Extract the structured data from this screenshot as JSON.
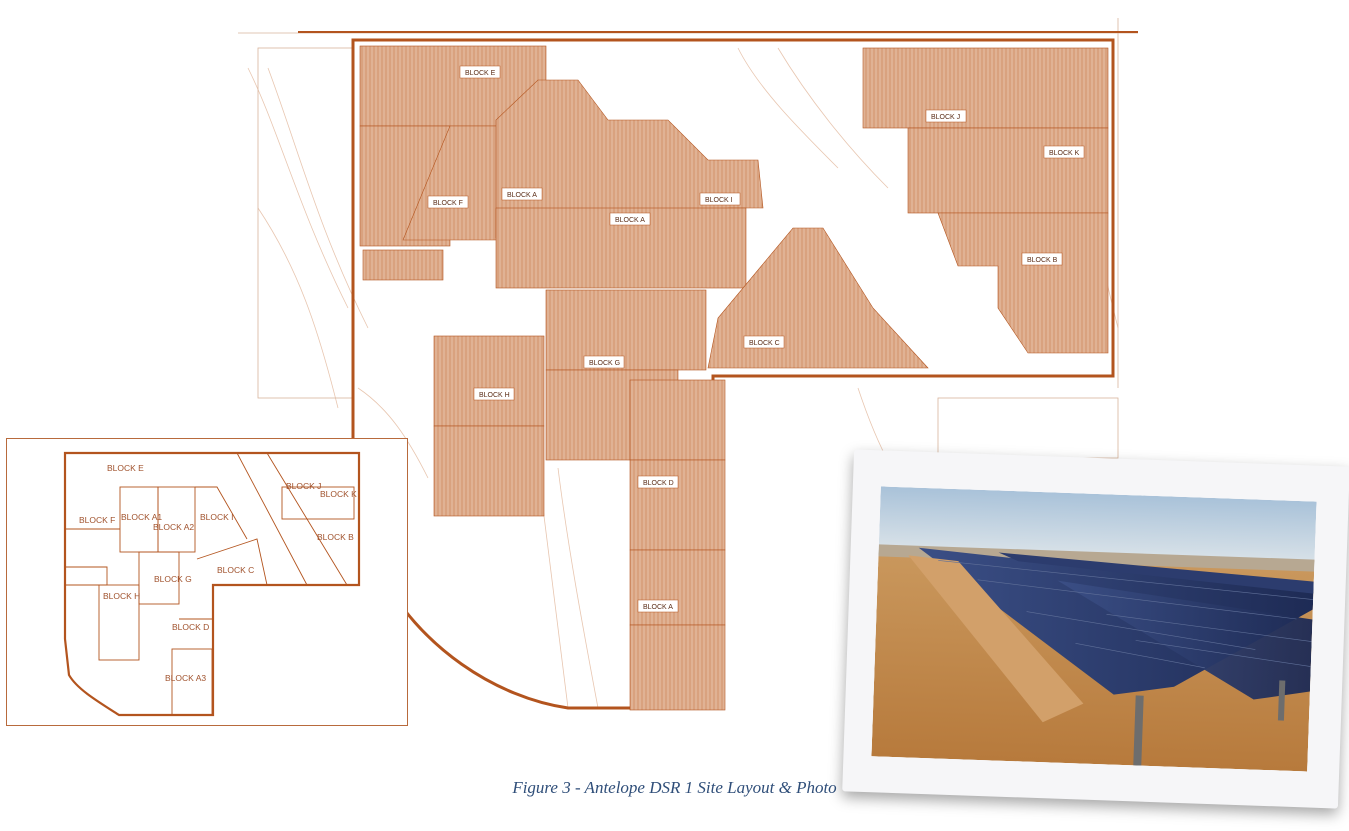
{
  "figure": {
    "caption": "Figure 3 - Antelope DSR 1 Site Layout & Photo"
  },
  "site_plan": {
    "block_labels": {
      "e": "BLOCK E",
      "f": "BLOCK F",
      "a_upper": "BLOCK A",
      "a_mid": "BLOCK A",
      "i": "BLOCK I",
      "j": "BLOCK J",
      "k": "BLOCK K",
      "b": "BLOCK B",
      "c": "BLOCK C",
      "g": "BLOCK G",
      "h": "BLOCK H",
      "d": "BLOCK D",
      "a_lower": "BLOCK A"
    }
  },
  "key_map": {
    "block_labels": {
      "e": "BLOCK E",
      "j": "BLOCK J",
      "k": "BLOCK K",
      "f": "BLOCK F",
      "a1": "BLOCK A1",
      "a2": "BLOCK A2",
      "i": "BLOCK I",
      "b": "BLOCK B",
      "g": "BLOCK G",
      "c": "BLOCK C",
      "h": "BLOCK H",
      "d": "BLOCK D",
      "a3": "BLOCK A3"
    }
  },
  "colors": {
    "array_fill": "#d9a27f",
    "outline": "#b3541e",
    "caption": "#2f4e79"
  }
}
